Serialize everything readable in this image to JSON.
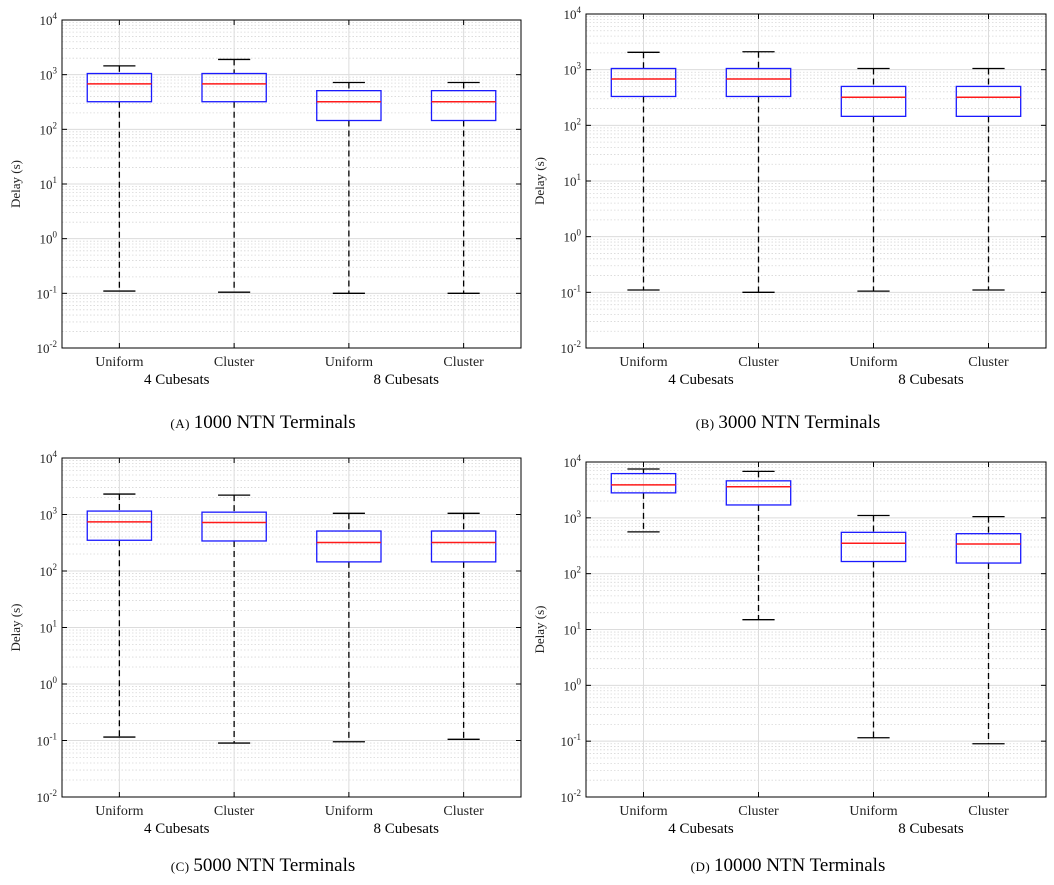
{
  "colors": {
    "box": "#1a1aff",
    "median": "#ff1a1a",
    "whisker": "#000000",
    "grid_major": "#dcdcdc",
    "grid_minor": "#d8d8d8",
    "axis": "#000000"
  },
  "chart_data": [
    {
      "type": "box",
      "caption_letter": "(A)",
      "caption_text": "1000 NTN Terminals",
      "ylabel": "Delay (s)",
      "yscale": "log",
      "ylim": [
        0.01,
        10000
      ],
      "grid": true,
      "categories": [
        "Uniform",
        "Cluster",
        "Uniform",
        "Cluster"
      ],
      "groups": [
        "4 Cubesats",
        "8 Cubesats"
      ],
      "boxes": [
        {
          "category": "Uniform",
          "group": "4 Cubesats",
          "whisker_low": 0.11,
          "q1": 320,
          "median": 680,
          "q3": 1050,
          "whisker_high": 1450
        },
        {
          "category": "Cluster",
          "group": "4 Cubesats",
          "whisker_low": 0.105,
          "q1": 320,
          "median": 680,
          "q3": 1050,
          "whisker_high": 1900
        },
        {
          "category": "Uniform",
          "group": "8 Cubesats",
          "whisker_low": 0.1,
          "q1": 145,
          "median": 320,
          "q3": 510,
          "whisker_high": 720
        },
        {
          "category": "Cluster",
          "group": "8 Cubesats",
          "whisker_low": 0.1,
          "q1": 145,
          "median": 320,
          "q3": 510,
          "whisker_high": 720
        }
      ]
    },
    {
      "type": "box",
      "caption_letter": "(B)",
      "caption_text": "3000 NTN Terminals",
      "ylabel": "Delay (s)",
      "yscale": "log",
      "ylim": [
        0.01,
        10000
      ],
      "grid": true,
      "categories": [
        "Uniform",
        "Cluster",
        "Uniform",
        "Cluster"
      ],
      "groups": [
        "4 Cubesats",
        "8 Cubesats"
      ],
      "boxes": [
        {
          "category": "Uniform",
          "group": "4 Cubesats",
          "whisker_low": 0.11,
          "q1": 330,
          "median": 680,
          "q3": 1050,
          "whisker_high": 2050
        },
        {
          "category": "Cluster",
          "group": "4 Cubesats",
          "whisker_low": 0.1,
          "q1": 330,
          "median": 680,
          "q3": 1050,
          "whisker_high": 2100
        },
        {
          "category": "Uniform",
          "group": "8 Cubesats",
          "whisker_low": 0.105,
          "q1": 145,
          "median": 320,
          "q3": 500,
          "whisker_high": 1050
        },
        {
          "category": "Cluster",
          "group": "8 Cubesats",
          "whisker_low": 0.11,
          "q1": 145,
          "median": 320,
          "q3": 500,
          "whisker_high": 1050
        }
      ]
    },
    {
      "type": "box",
      "caption_letter": "(C)",
      "caption_text": "5000 NTN Terminals",
      "ylabel": "Delay (s)",
      "yscale": "log",
      "ylim": [
        0.01,
        10000
      ],
      "grid": true,
      "categories": [
        "Uniform",
        "Cluster",
        "Uniform",
        "Cluster"
      ],
      "groups": [
        "4 Cubesats",
        "8 Cubesats"
      ],
      "boxes": [
        {
          "category": "Uniform",
          "group": "4 Cubesats",
          "whisker_low": 0.115,
          "q1": 350,
          "median": 740,
          "q3": 1150,
          "whisker_high": 2300
        },
        {
          "category": "Cluster",
          "group": "4 Cubesats",
          "whisker_low": 0.09,
          "q1": 340,
          "median": 720,
          "q3": 1100,
          "whisker_high": 2200
        },
        {
          "category": "Uniform",
          "group": "8 Cubesats",
          "whisker_low": 0.095,
          "q1": 145,
          "median": 320,
          "q3": 510,
          "whisker_high": 1050
        },
        {
          "category": "Cluster",
          "group": "8 Cubesats",
          "whisker_low": 0.105,
          "q1": 145,
          "median": 320,
          "q3": 510,
          "whisker_high": 1050
        }
      ]
    },
    {
      "type": "box",
      "caption_letter": "(D)",
      "caption_text": "10000 NTN Terminals",
      "ylabel": "Delay (s)",
      "yscale": "log",
      "ylim": [
        0.01,
        10000
      ],
      "grid": true,
      "categories": [
        "Uniform",
        "Cluster",
        "Uniform",
        "Cluster"
      ],
      "groups": [
        "4 Cubesats",
        "8 Cubesats"
      ],
      "boxes": [
        {
          "category": "Uniform",
          "group": "4 Cubesats",
          "whisker_low": 560,
          "q1": 2800,
          "median": 3900,
          "q3": 6200,
          "whisker_high": 7500
        },
        {
          "category": "Cluster",
          "group": "4 Cubesats",
          "whisker_low": 15,
          "q1": 1700,
          "median": 3600,
          "q3": 4600,
          "whisker_high": 6800
        },
        {
          "category": "Uniform",
          "group": "8 Cubesats",
          "whisker_low": 0.115,
          "q1": 165,
          "median": 350,
          "q3": 550,
          "whisker_high": 1100
        },
        {
          "category": "Cluster",
          "group": "8 Cubesats",
          "whisker_low": 0.09,
          "q1": 155,
          "median": 340,
          "q3": 520,
          "whisker_high": 1050
        }
      ]
    }
  ]
}
